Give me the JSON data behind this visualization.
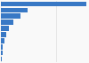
{
  "values": [
    155000,
    48000,
    35000,
    22000,
    15000,
    9500,
    6000,
    4000,
    2500,
    1200
  ],
  "bar_color": "#3878c5",
  "background_color": "#f9f9f9",
  "grid_color": "#e0e0e0",
  "figsize": [
    1.0,
    0.71
  ]
}
